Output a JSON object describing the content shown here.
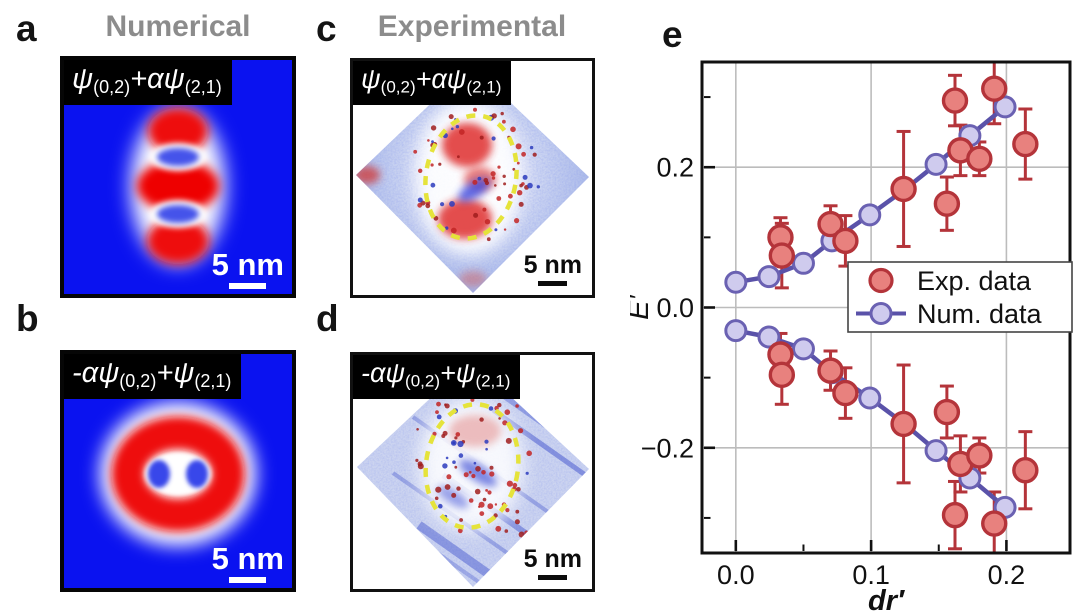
{
  "figure": {
    "panels": {
      "a": {
        "letter": "a",
        "title": "Numerical",
        "formula": {
          "p1": "ψ",
          "s1": "(0,2)",
          "p2": "+αψ",
          "s2": "(2,1)"
        },
        "scale_bar": "5 nm"
      },
      "b": {
        "letter": "b",
        "formula": {
          "p1": "-αψ",
          "s1": "(0,2)",
          "p2": "+ψ",
          "s2": "(2,1)"
        },
        "scale_bar": "5 nm"
      },
      "c": {
        "letter": "c",
        "title": "Experimental",
        "formula": {
          "p1": "ψ",
          "s1": "(0,2)",
          "p2": "+αψ",
          "s2": "(2,1)"
        },
        "scale_bar": "5 nm"
      },
      "d": {
        "letter": "d",
        "formula": {
          "p1": "-αψ",
          "s1": "(0,2)",
          "p2": "+ψ",
          "s2": "(2,1)"
        },
        "scale_bar": "5 nm"
      },
      "e": {
        "letter": "e"
      }
    }
  },
  "colors": {
    "exp_fill": "#e8817e",
    "exp_edge": "#b4343a",
    "errorbar": "#b4343a",
    "num_fill": "#cfcbee",
    "num_edge": "#6a61b2",
    "num_line": "#5a52a9",
    "grid": "#bcbcbc",
    "axis": "#111111",
    "title_gray": "#8c8c8c"
  },
  "chart_data": {
    "type": "scatter",
    "xlabel": "dr′",
    "ylabel": "E′",
    "xlim": [
      -0.025,
      0.247
    ],
    "ylim": [
      -0.35,
      0.35
    ],
    "grid": true,
    "legend": {
      "position": "middle-right",
      "entries": [
        {
          "label": "Exp. data",
          "series": "exp"
        },
        {
          "label": "Num. data",
          "series": "num"
        }
      ]
    },
    "x_ticks": [
      {
        "value": 0.0,
        "label": "0.0"
      },
      {
        "value": 0.1,
        "label": "0.1"
      },
      {
        "value": 0.2,
        "label": "0.2"
      }
    ],
    "x_minor_ticks": [
      0.05,
      0.15
    ],
    "y_ticks": [
      {
        "value": -0.2,
        "label": "−0.2"
      },
      {
        "value": 0.0,
        "label": "0.0"
      },
      {
        "value": 0.2,
        "label": "0.2"
      }
    ],
    "y_minor_ticks": [
      -0.3,
      -0.1,
      0.1,
      0.3
    ],
    "series": [
      {
        "name": "Num. data (upper branch)",
        "role": "num",
        "x": [
          0.0,
          0.0245,
          0.05,
          0.071,
          0.099,
          0.124,
          0.148,
          0.173,
          0.199
        ],
        "y": [
          0.036,
          0.044,
          0.063,
          0.095,
          0.132,
          0.167,
          0.204,
          0.245,
          0.286
        ]
      },
      {
        "name": "Num. data (lower branch)",
        "role": "num",
        "x": [
          0.0,
          0.0245,
          0.05,
          0.071,
          0.099,
          0.124,
          0.148,
          0.173,
          0.199
        ],
        "y": [
          -0.033,
          -0.042,
          -0.059,
          -0.093,
          -0.129,
          -0.165,
          -0.204,
          -0.243,
          -0.285
        ]
      },
      {
        "name": "Exp. data (upper branch)",
        "role": "exp",
        "x": [
          0.033,
          0.034,
          0.07,
          0.081,
          0.124,
          0.156,
          0.162,
          0.166,
          0.18,
          0.191,
          0.214
        ],
        "y": [
          0.1,
          0.074,
          0.119,
          0.095,
          0.169,
          0.148,
          0.295,
          0.224,
          0.212,
          0.312,
          0.233
        ],
        "yerr": [
          0.028,
          0.046,
          0.026,
          0.036,
          0.082,
          0.038,
          0.036,
          0.036,
          0.024,
          0.05,
          0.05
        ]
      },
      {
        "name": "Exp. data (lower branch)",
        "role": "exp",
        "x": [
          0.033,
          0.034,
          0.07,
          0.081,
          0.124,
          0.156,
          0.162,
          0.166,
          0.18,
          0.191,
          0.214
        ],
        "y": [
          -0.067,
          -0.096,
          -0.09,
          -0.122,
          -0.166,
          -0.149,
          -0.296,
          -0.223,
          -0.211,
          -0.308,
          -0.232
        ],
        "yerr": [
          0.03,
          0.042,
          0.028,
          0.036,
          0.084,
          0.037,
          0.048,
          0.04,
          0.025,
          0.045,
          0.055
        ]
      }
    ]
  }
}
